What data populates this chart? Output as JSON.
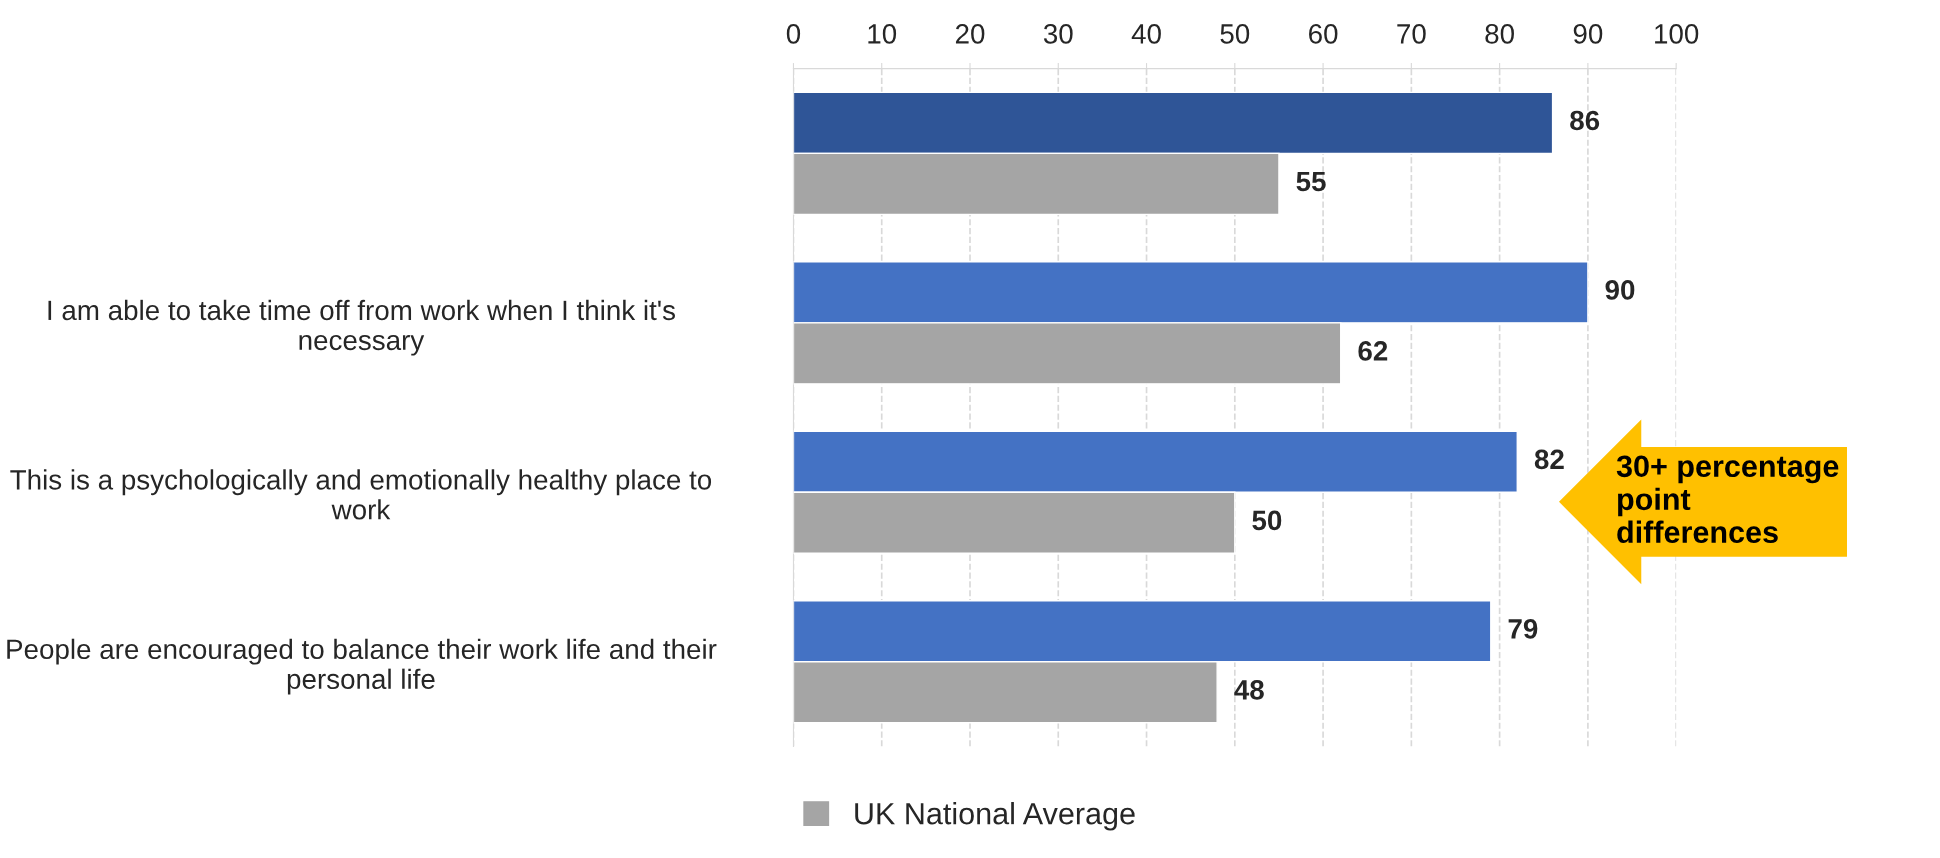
{
  "chart_data": {
    "type": "bar",
    "orientation": "horizontal",
    "categories": [
      null,
      "I am able to take time off from work when I think it's necessary",
      "This is a psychologically and emotionally healthy place to work",
      "People are encouraged to balance their work life and their personal life"
    ],
    "series": [
      {
        "colors": [
          "#2f5597",
          "#4472c4",
          "#4472c4",
          "#4472c4"
        ],
        "color": "#4472c4",
        "values": [
          86,
          90,
          82,
          79
        ]
      },
      {
        "name": "UK National Average",
        "color": "#a5a5a5",
        "values": [
          55,
          62,
          50,
          48
        ]
      }
    ],
    "xlim": [
      0,
      100
    ],
    "xticks": [
      0,
      10,
      20,
      30,
      40,
      50,
      60,
      70,
      80,
      90,
      100
    ],
    "grid": "x",
    "data_labels": true,
    "legend": "bottom",
    "annotations": [
      "30+ percentage\npoint\ndifferences"
    ]
  }
}
